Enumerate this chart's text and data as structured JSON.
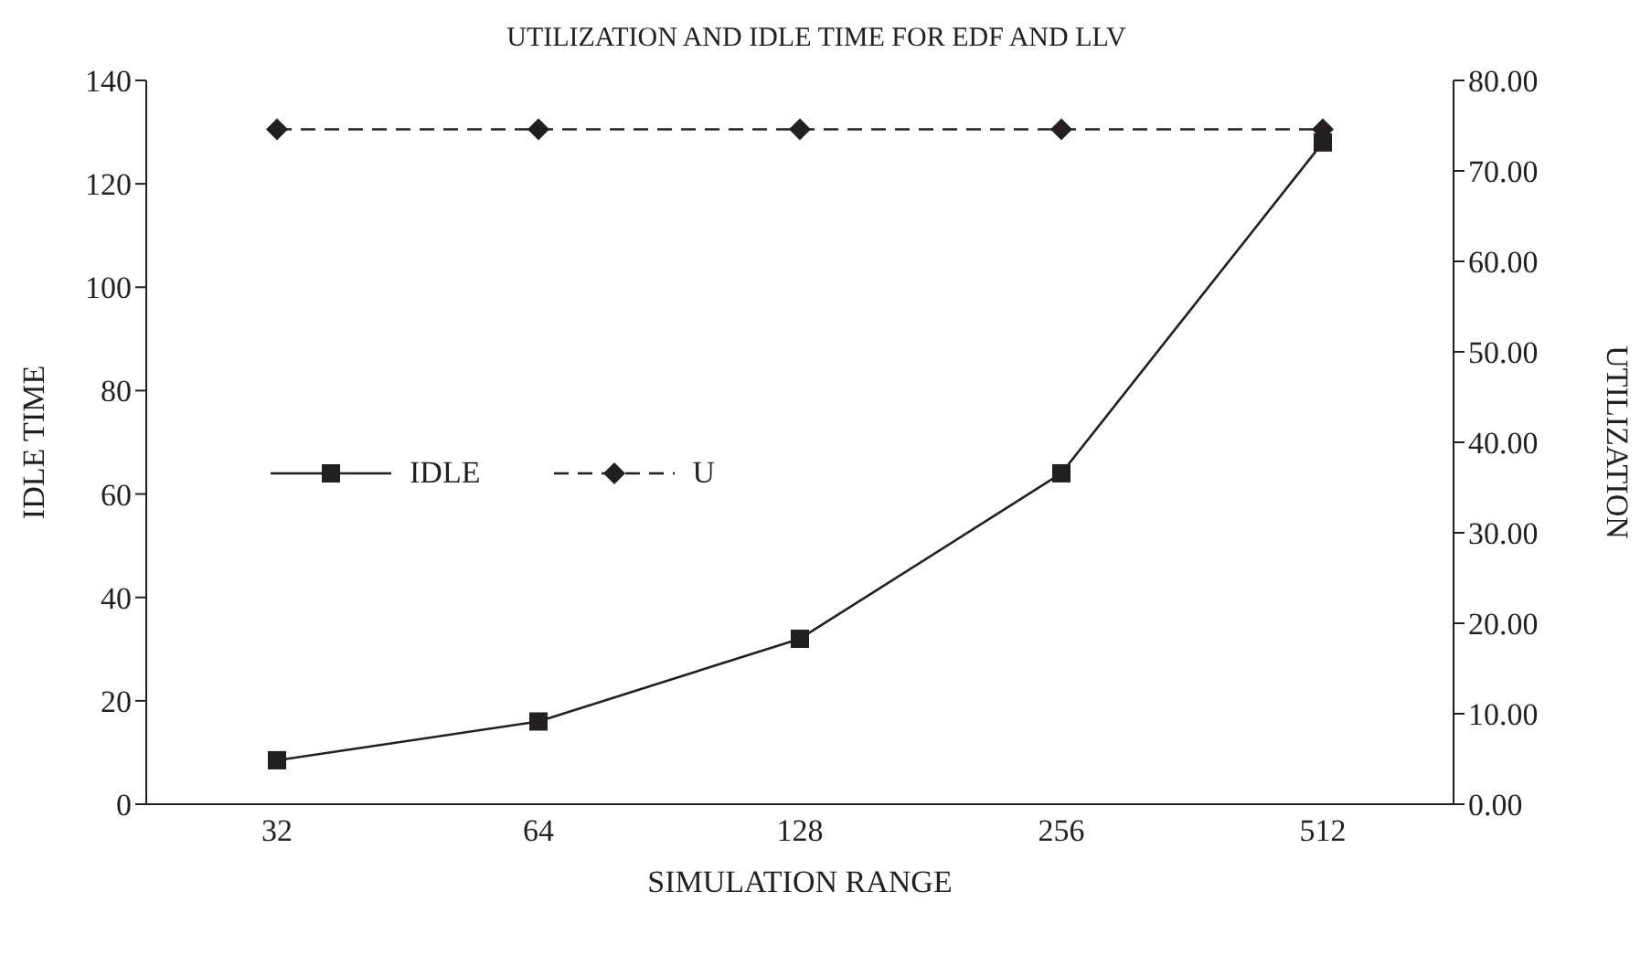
{
  "chart_data": {
    "type": "line",
    "title": "UTILIZATION AND IDLE TIME FOR EDF AND LLV",
    "xlabel": "SIMULATION RANGE",
    "ylabel": "IDLE TIME",
    "y2label": "UTILIZATION",
    "categories": [
      "32",
      "64",
      "128",
      "256",
      "512"
    ],
    "series": [
      {
        "name": "IDLE",
        "color": "#231f20",
        "values": [
          8.5,
          16,
          32,
          64,
          128
        ],
        "marker": "square",
        "line_style": "solid"
      },
      {
        "name": "U",
        "color": "#231f20",
        "values": [
          74.6,
          74.6,
          74.6,
          74.6,
          74.6
        ],
        "axis": "y2",
        "marker": "diamond",
        "line_style": "dashed"
      }
    ],
    "ylim": [
      0,
      140
    ],
    "yticks": [
      0,
      20,
      40,
      60,
      80,
      100,
      120,
      140
    ],
    "y2lim": [
      0,
      80
    ],
    "y2ticks": [
      {
        "value": 0,
        "label": "0.00"
      },
      {
        "value": 10,
        "label": "10.00"
      },
      {
        "value": 20,
        "label": "20.00"
      },
      {
        "value": 30,
        "label": "30.00"
      },
      {
        "value": 40,
        "label": "40.00"
      },
      {
        "value": 50,
        "label": "50.00"
      },
      {
        "value": 60,
        "label": "60.00"
      },
      {
        "value": 70,
        "label": "70.00"
      },
      {
        "value": 80,
        "label": "80.00"
      }
    ],
    "grid": false,
    "legend": "left"
  }
}
